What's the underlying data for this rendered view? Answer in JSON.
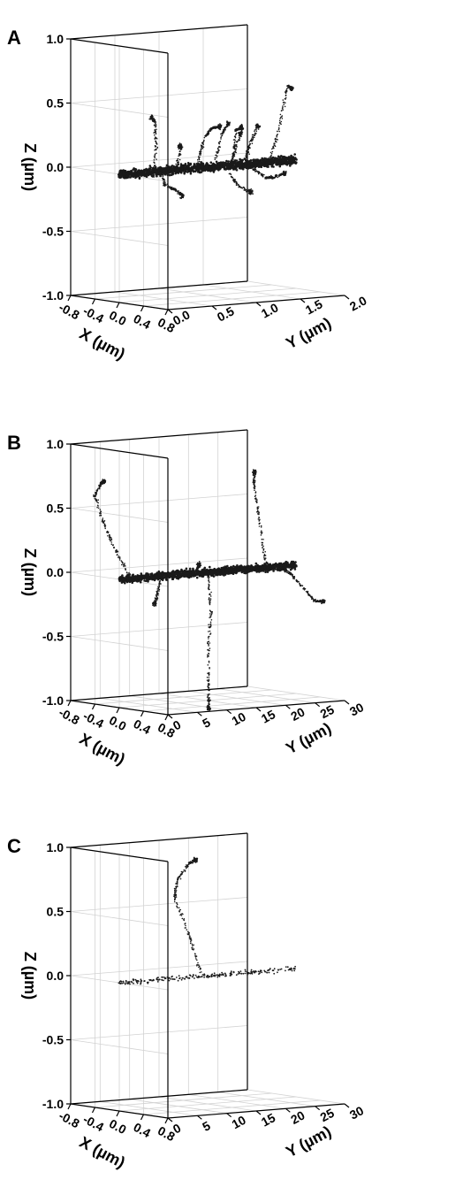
{
  "chart_data": [
    {
      "type": "scatter",
      "panel": "A",
      "xlabel": "X (µm)",
      "ylabel": "Y (µm)",
      "zlabel": "Z (µm)",
      "xlim": [
        -0.8,
        0.8
      ],
      "ylim": [
        0.0,
        2.0
      ],
      "zlim": [
        -1.0,
        1.0
      ],
      "x_ticks": [
        "-0.8",
        "-0.4",
        "0.0",
        "0.4",
        "0.8"
      ],
      "y_ticks": [
        "0.0",
        "0.5",
        "1.0",
        "1.5",
        "2.0"
      ],
      "z_ticks": [
        "-1.0",
        "-0.5",
        "0.0",
        "0.5",
        "1.0"
      ],
      "grid": true,
      "series": [
        {
          "kind": "rod",
          "x": [
            0,
            0
          ],
          "y": [
            0.0,
            2.0
          ],
          "z": [
            0,
            0
          ],
          "density": "dense",
          "spread": 0.035
        },
        {
          "kind": "track",
          "x": [
            0.05,
            0.1,
            0.15,
            0.1
          ],
          "y": [
            0.35,
            0.35,
            0.3,
            0.3
          ],
          "z": [
            -0.05,
            0.2,
            0.4,
            0.43
          ]
        },
        {
          "kind": "track",
          "x": [
            0.05,
            0.15,
            0.2
          ],
          "y": [
            0.6,
            0.6,
            0.55
          ],
          "z": [
            0,
            0.18,
            0.2
          ]
        },
        {
          "kind": "track",
          "x": [
            -0.05,
            -0.05,
            0.05,
            0.1
          ],
          "y": [
            0.5,
            0.55,
            0.6,
            0.65
          ],
          "z": [
            0.02,
            -0.12,
            -0.15,
            -0.2
          ]
        },
        {
          "kind": "track",
          "x": [
            0.05,
            0.1,
            0.15,
            0.2
          ],
          "y": [
            0.85,
            0.9,
            0.95,
            1.0
          ],
          "z": [
            0.05,
            0.25,
            0.32,
            0.33
          ]
        },
        {
          "kind": "track",
          "x": [
            0.05,
            0.1,
            0.12
          ],
          "y": [
            1.05,
            1.1,
            1.15
          ],
          "z": [
            0.05,
            0.27,
            0.34
          ]
        },
        {
          "kind": "track",
          "x": [
            0.05,
            0.1,
            0.12
          ],
          "y": [
            1.25,
            1.25,
            1.3
          ],
          "z": [
            0.05,
            0.28,
            0.3
          ]
        },
        {
          "kind": "track",
          "x": [
            0.05,
            0.1
          ],
          "y": [
            1.25,
            1.3
          ],
          "z": [
            0.05,
            0.25
          ]
        },
        {
          "kind": "track",
          "x": [
            0.05,
            0.1,
            0.1
          ],
          "y": [
            1.4,
            1.4,
            1.5
          ],
          "z": [
            0.05,
            0.15,
            0.3
          ]
        },
        {
          "kind": "track",
          "x": [
            0.0,
            0.1,
            0.15,
            0.15
          ],
          "y": [
            1.7,
            1.75,
            1.8,
            1.85
          ],
          "z": [
            0.0,
            0.3,
            0.6,
            0.58
          ]
        },
        {
          "kind": "track",
          "x": [
            0.05,
            0.15,
            0.2,
            0.25
          ],
          "y": [
            1.45,
            1.55,
            1.6,
            1.7
          ],
          "z": [
            -0.02,
            -0.1,
            -0.1,
            -0.07
          ]
        },
        {
          "kind": "track",
          "x": [
            0.05,
            0.15,
            0.2
          ],
          "y": [
            1.2,
            1.25,
            1.35
          ],
          "z": [
            -0.05,
            -0.15,
            -0.2
          ]
        }
      ]
    },
    {
      "type": "scatter",
      "panel": "B",
      "xlabel": "X (µm)",
      "ylabel": "Y (µm)",
      "zlabel": "Z (µm)",
      "xlim": [
        -0.8,
        0.8
      ],
      "ylim": [
        0,
        30
      ],
      "zlim": [
        -1.0,
        1.0
      ],
      "x_ticks": [
        "-0.8",
        "-0.4",
        "0.0",
        "0.4",
        "0.8"
      ],
      "y_ticks": [
        "0",
        "5",
        "10",
        "15",
        "20",
        "25",
        "30"
      ],
      "z_ticks": [
        "-1.0",
        "-0.5",
        "0.0",
        "0.5",
        "1.0"
      ],
      "grid": true,
      "series": [
        {
          "kind": "rod",
          "x": [
            0,
            0
          ],
          "y": [
            0,
            30
          ],
          "z": [
            0,
            0
          ],
          "density": "dense",
          "spread": 0.03
        },
        {
          "kind": "track",
          "x": [
            0.0,
            -0.2,
            -0.35,
            -0.45,
            -0.35,
            -0.3
          ],
          "y": [
            2,
            1.5,
            1,
            0.5,
            0.5,
            0.5
          ],
          "z": [
            0,
            0.2,
            0.4,
            0.62,
            0.72,
            0.74
          ]
        },
        {
          "kind": "track",
          "x": [
            0.0,
            -0.1,
            -0.2,
            -0.2
          ],
          "y": [
            25,
            25,
            25,
            25
          ],
          "z": [
            0,
            0.3,
            0.6,
            0.73
          ]
        },
        {
          "kind": "track",
          "x": [
            0.0,
            0.1,
            0.2,
            0.35,
            0.45
          ],
          "y": [
            27,
            28,
            29,
            29.5,
            30
          ],
          "z": [
            0,
            -0.05,
            -0.15,
            -0.25,
            -0.25
          ]
        },
        {
          "kind": "track",
          "x": [
            0.0,
            0.15,
            0.3,
            0.5,
            0.6
          ],
          "y": [
            15,
            14,
            12,
            10,
            9
          ],
          "z": [
            0,
            -0.3,
            -0.6,
            -0.9,
            -1.0
          ]
        },
        {
          "kind": "track",
          "x": [
            0.0,
            0.05,
            0.1
          ],
          "y": [
            7,
            6,
            5
          ],
          "z": [
            0,
            -0.12,
            -0.2
          ]
        },
        {
          "kind": "track",
          "x": [
            0.0,
            0.05
          ],
          "y": [
            13,
            13
          ],
          "z": [
            0,
            0.07
          ]
        }
      ]
    },
    {
      "type": "scatter",
      "panel": "C",
      "xlabel": "X (µm)",
      "ylabel": "Y (µm)",
      "zlabel": "Z (µm)",
      "xlim": [
        -0.8,
        0.8
      ],
      "ylim": [
        0,
        30
      ],
      "zlim": [
        -1.0,
        1.0
      ],
      "x_ticks": [
        "-0.8",
        "-0.4",
        "0.0",
        "0.4",
        "0.8"
      ],
      "y_ticks": [
        "0",
        "5",
        "10",
        "15",
        "20",
        "25",
        "30"
      ],
      "z_ticks": [
        "-1.0",
        "-0.5",
        "0.0",
        "0.5",
        "1.0"
      ],
      "grid": true,
      "series": [
        {
          "kind": "rod",
          "x": [
            0,
            0
          ],
          "y": [
            0,
            30
          ],
          "z": [
            0,
            0
          ],
          "density": "sparse",
          "spread": 0.02
        },
        {
          "kind": "track",
          "x": [
            0.0,
            -0.1,
            -0.25,
            -0.2,
            -0.1,
            -0.1
          ],
          "y": [
            14,
            13,
            12,
            12,
            13,
            14
          ],
          "z": [
            0,
            0.3,
            0.6,
            0.75,
            0.88,
            0.9
          ]
        }
      ]
    }
  ]
}
